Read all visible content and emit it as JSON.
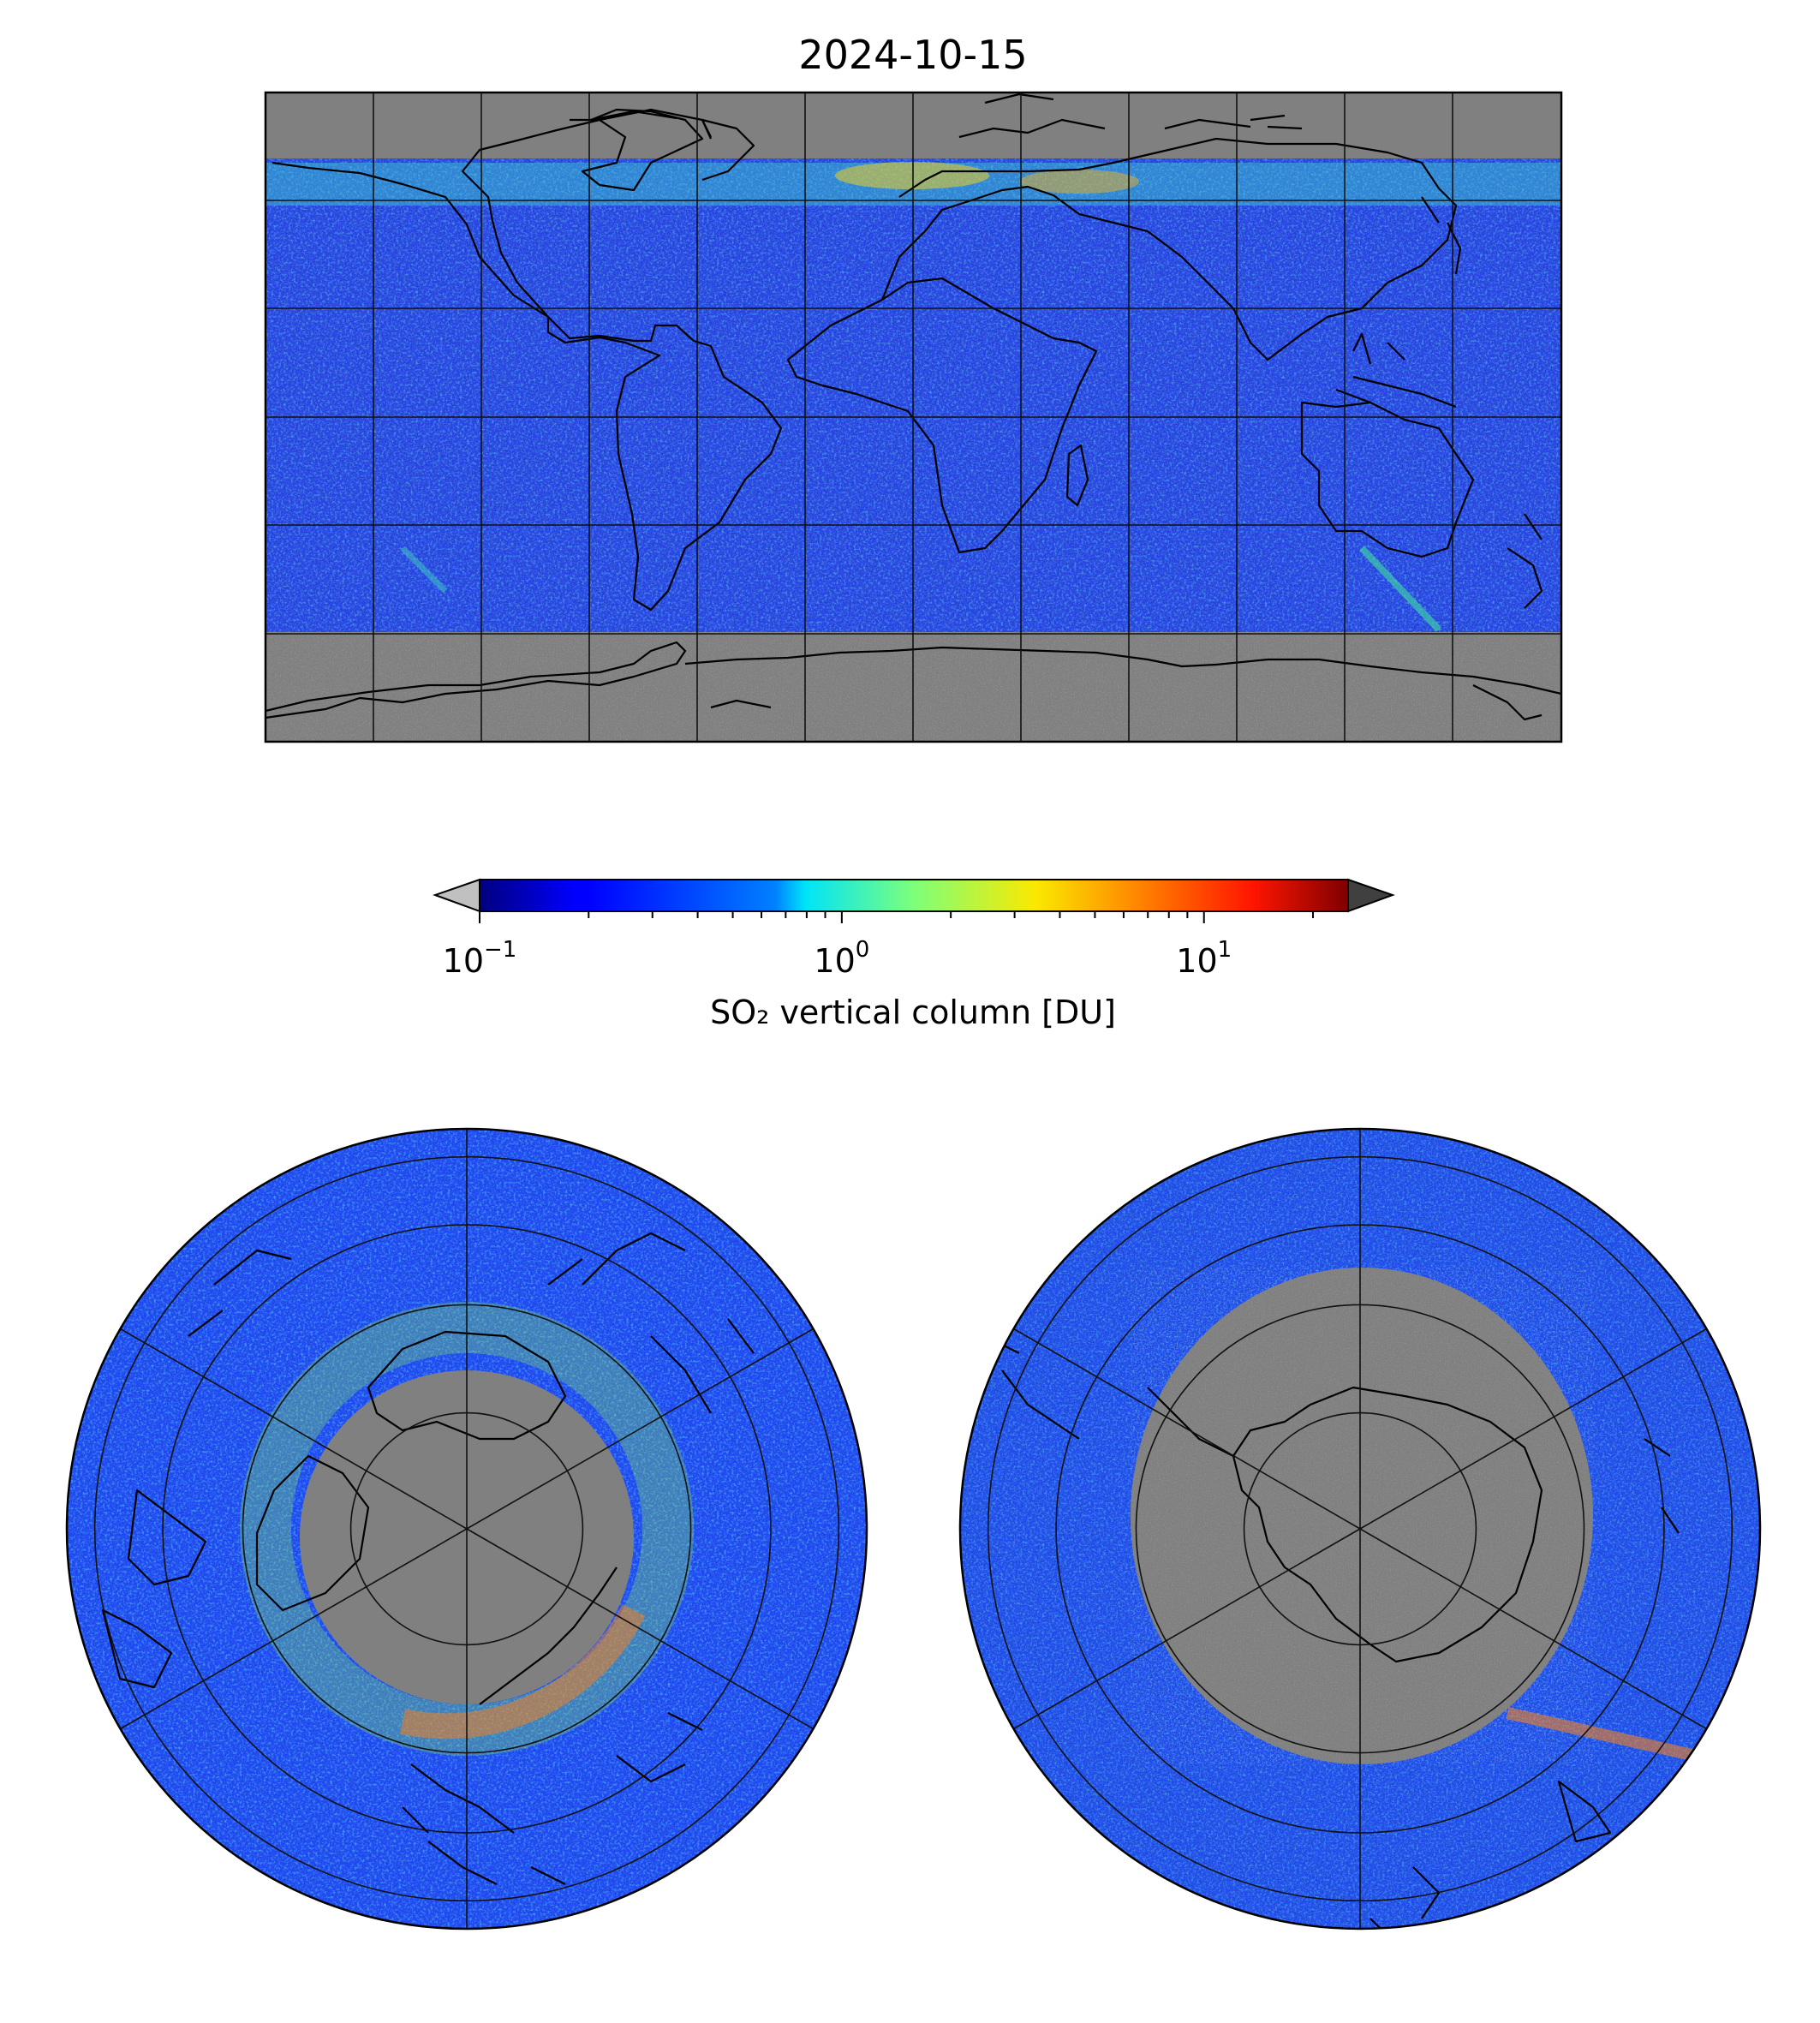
{
  "title": "2024-10-15",
  "colorbar": {
    "label": "SO₂ vertical column [DU]",
    "scale": "log",
    "range": [
      0.1,
      25
    ],
    "colormap": "jet",
    "extend": "both",
    "under_color": "#c0c0c0",
    "over_color": "#404040",
    "ticks": [
      {
        "base": "10",
        "exp": "−1",
        "value": 0.1
      },
      {
        "base": "10",
        "exp": "0",
        "value": 1
      },
      {
        "base": "10",
        "exp": "1",
        "value": 10
      }
    ]
  },
  "colors": {
    "missing_data": "#808080",
    "below_range": "#c0c0c0",
    "coastline": "#000000",
    "gridline": "#111111"
  },
  "maps": [
    {
      "name": "global",
      "projection": "plate-carree",
      "lon_range": [
        -180,
        180
      ],
      "lat_range": [
        -90,
        90
      ],
      "gridline_spacing_deg": 30
    },
    {
      "name": "north-polar",
      "projection": "north-polar-stereographic",
      "gridline_spacing_deg": 30
    },
    {
      "name": "south-polar",
      "projection": "south-polar-stereographic",
      "gridline_spacing_deg": 30
    }
  ]
}
